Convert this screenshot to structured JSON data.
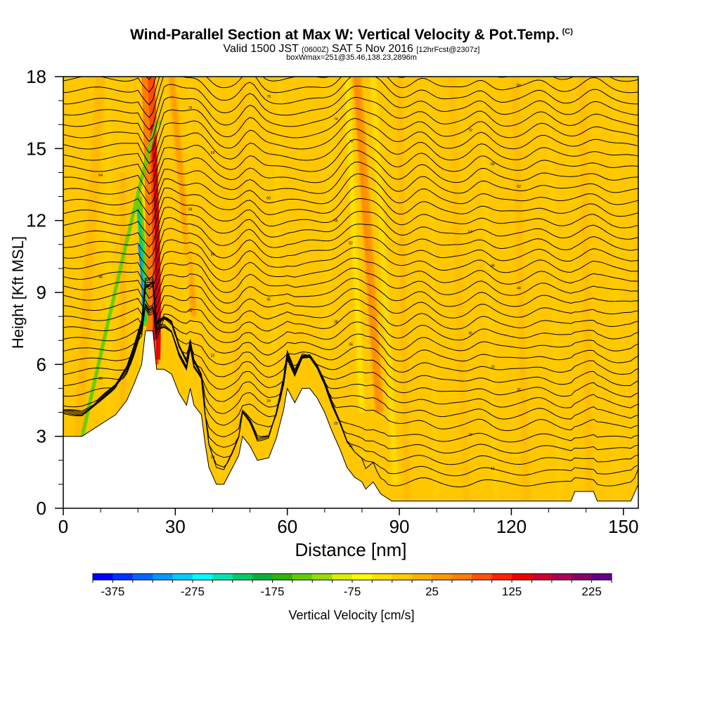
{
  "header": {
    "title": "Wind-Parallel Section at Max W: Vertical Velocity & Pot.Temp.",
    "copyright": "(C)",
    "valid_prefix": "Valid 1500 JST",
    "valid_utc": "(0600Z)",
    "valid_date": "SAT 5 Nov 2016",
    "forecast": "[12hrFcst@2307z]",
    "boxwmax": "boxWmax=251@35.46,138.23,2896m"
  },
  "chart_data": {
    "type": "heatmap",
    "xlabel": "Distance [nm]",
    "ylabel": "Height [Kft MSL]",
    "xlim": [
      0,
      154
    ],
    "ylim": [
      0,
      18
    ],
    "x_ticks": [
      "0",
      "30",
      "60",
      "90",
      "120",
      "150"
    ],
    "y_ticks": [
      "0",
      "3",
      "6",
      "9",
      "12",
      "15",
      "18"
    ],
    "colorbar": {
      "label": "Vertical Velocity [cm/s]",
      "ticks": [
        "-375",
        "-275",
        "-175",
        "-75",
        "25",
        "125",
        "225"
      ],
      "min": -400,
      "max": 250,
      "colors": [
        "#0000ff",
        "#0033ff",
        "#0066ff",
        "#0099ff",
        "#00ccff",
        "#00ffff",
        "#00e5b0",
        "#00cc66",
        "#00b33c",
        "#33b300",
        "#66cc00",
        "#99dd00",
        "#ddee00",
        "#ffff00",
        "#ffe000",
        "#ffcc00",
        "#ffb300",
        "#ff9900",
        "#ff7f00",
        "#ff5500",
        "#ff2200",
        "#ee0000",
        "#cc0033",
        "#aa0055",
        "#880066",
        "#660088"
      ]
    },
    "terrain_kft": [
      [
        0,
        3.0
      ],
      [
        5,
        3.0
      ],
      [
        8,
        3.3
      ],
      [
        11,
        3.6
      ],
      [
        14,
        3.9
      ],
      [
        17,
        4.5
      ],
      [
        19,
        5.2
      ],
      [
        21,
        6.0
      ],
      [
        22,
        7.4
      ],
      [
        24,
        7.4
      ],
      [
        25,
        5.8
      ],
      [
        27,
        5.8
      ],
      [
        29,
        5.6
      ],
      [
        31,
        4.8
      ],
      [
        33,
        4.3
      ],
      [
        34,
        5.0
      ],
      [
        35,
        4.3
      ],
      [
        37,
        3.9
      ],
      [
        38,
        2.7
      ],
      [
        39,
        1.7
      ],
      [
        41,
        1.0
      ],
      [
        43,
        1.0
      ],
      [
        45,
        1.6
      ],
      [
        47,
        2.2
      ],
      [
        48,
        3.0
      ],
      [
        50,
        2.6
      ],
      [
        52,
        2.0
      ],
      [
        55,
        2.1
      ],
      [
        57,
        2.9
      ],
      [
        59,
        4.1
      ],
      [
        60,
        5.0
      ],
      [
        62,
        4.4
      ],
      [
        64,
        5.0
      ],
      [
        66,
        5.0
      ],
      [
        68,
        4.6
      ],
      [
        70,
        4.0
      ],
      [
        72,
        3.2
      ],
      [
        74,
        2.5
      ],
      [
        76,
        1.7
      ],
      [
        78,
        1.3
      ],
      [
        80,
        1.1
      ],
      [
        81,
        0.8
      ],
      [
        83,
        1.1
      ],
      [
        85,
        0.6
      ],
      [
        88,
        0.3
      ],
      [
        102,
        0.3
      ],
      [
        125,
        0.3
      ],
      [
        136,
        0.3
      ],
      [
        137,
        0.7
      ],
      [
        142,
        0.7
      ],
      [
        143,
        0.3
      ],
      [
        152,
        0.3
      ],
      [
        154,
        1.0
      ]
    ],
    "isentrope_labels": [
      "10",
      "12",
      "14",
      "16",
      "18",
      "20",
      "22",
      "24",
      "26",
      "28",
      "30",
      "32",
      "34",
      "36",
      "38",
      "40",
      "42",
      "44",
      "46",
      "48",
      "50",
      "52",
      "54",
      "56",
      "58",
      "60",
      "62",
      "64",
      "66",
      "68",
      "70",
      "72",
      "74",
      "76",
      "78",
      "80",
      "82",
      "84"
    ],
    "max_vertical_velocity_cm_s": 251
  }
}
